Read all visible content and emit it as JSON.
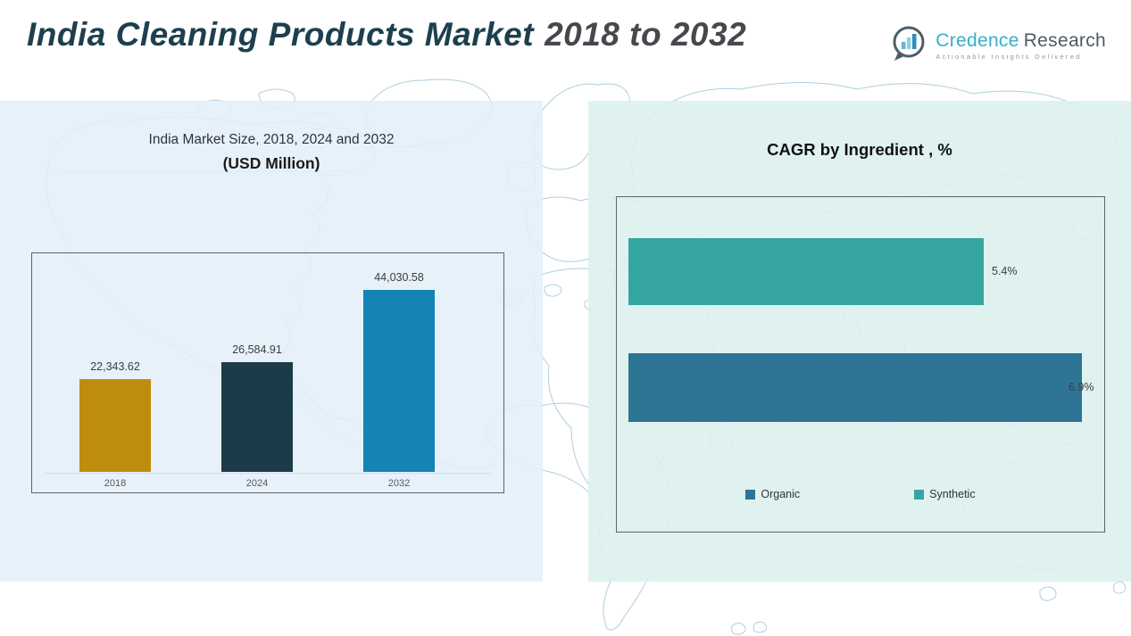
{
  "header": {
    "title_main": "India Cleaning Products Market",
    "title_years": "2018 to 2032",
    "logo": {
      "brand_primary": "Credence",
      "brand_secondary": "Research",
      "tagline": "Actionable Insights Delivered"
    }
  },
  "colors": {
    "title_teal": "#1d3f4e",
    "title_gray": "#45494d",
    "bar_gold": "#bf8d0d",
    "bar_navy": "#1c3a4a",
    "bar_blue": "#1583b3",
    "bar_teal": "#35a5a2",
    "bar_steel": "#2e7495",
    "left_panel_bg": "#e2effa",
    "right_panel_bg": "#dbf1ed",
    "map_line": "#aecfdf"
  },
  "chart_data": [
    {
      "type": "bar",
      "title": "India Market Size, 2018, 2024 and 2032",
      "subtitle": "(USD Million)",
      "categories": [
        "2018",
        "2024",
        "2032"
      ],
      "values": [
        22343.62,
        26584.91,
        44030.58
      ],
      "value_labels": [
        "22,343.62",
        "26,584.91",
        "44,030.58"
      ],
      "bar_colors": [
        "#bf8d0d",
        "#1c3a4a",
        "#1583b3"
      ],
      "ylim": [
        0,
        46000
      ],
      "grid": false,
      "legend_position": "none"
    },
    {
      "type": "bar",
      "orientation": "horizontal",
      "title": "CAGR by Ingredient , %",
      "categories": [
        "Synthetic",
        "Organic"
      ],
      "values": [
        5.4,
        6.9
      ],
      "value_labels": [
        "5.4%",
        "6.9%"
      ],
      "bar_colors": [
        "#35a5a2",
        "#2e7495"
      ],
      "xlim": [
        0,
        7
      ],
      "grid": false,
      "legend_position": "bottom",
      "legend": [
        {
          "label": "Organic",
          "color": "#2e7495"
        },
        {
          "label": "Synthetic",
          "color": "#35a5a2"
        }
      ]
    }
  ]
}
